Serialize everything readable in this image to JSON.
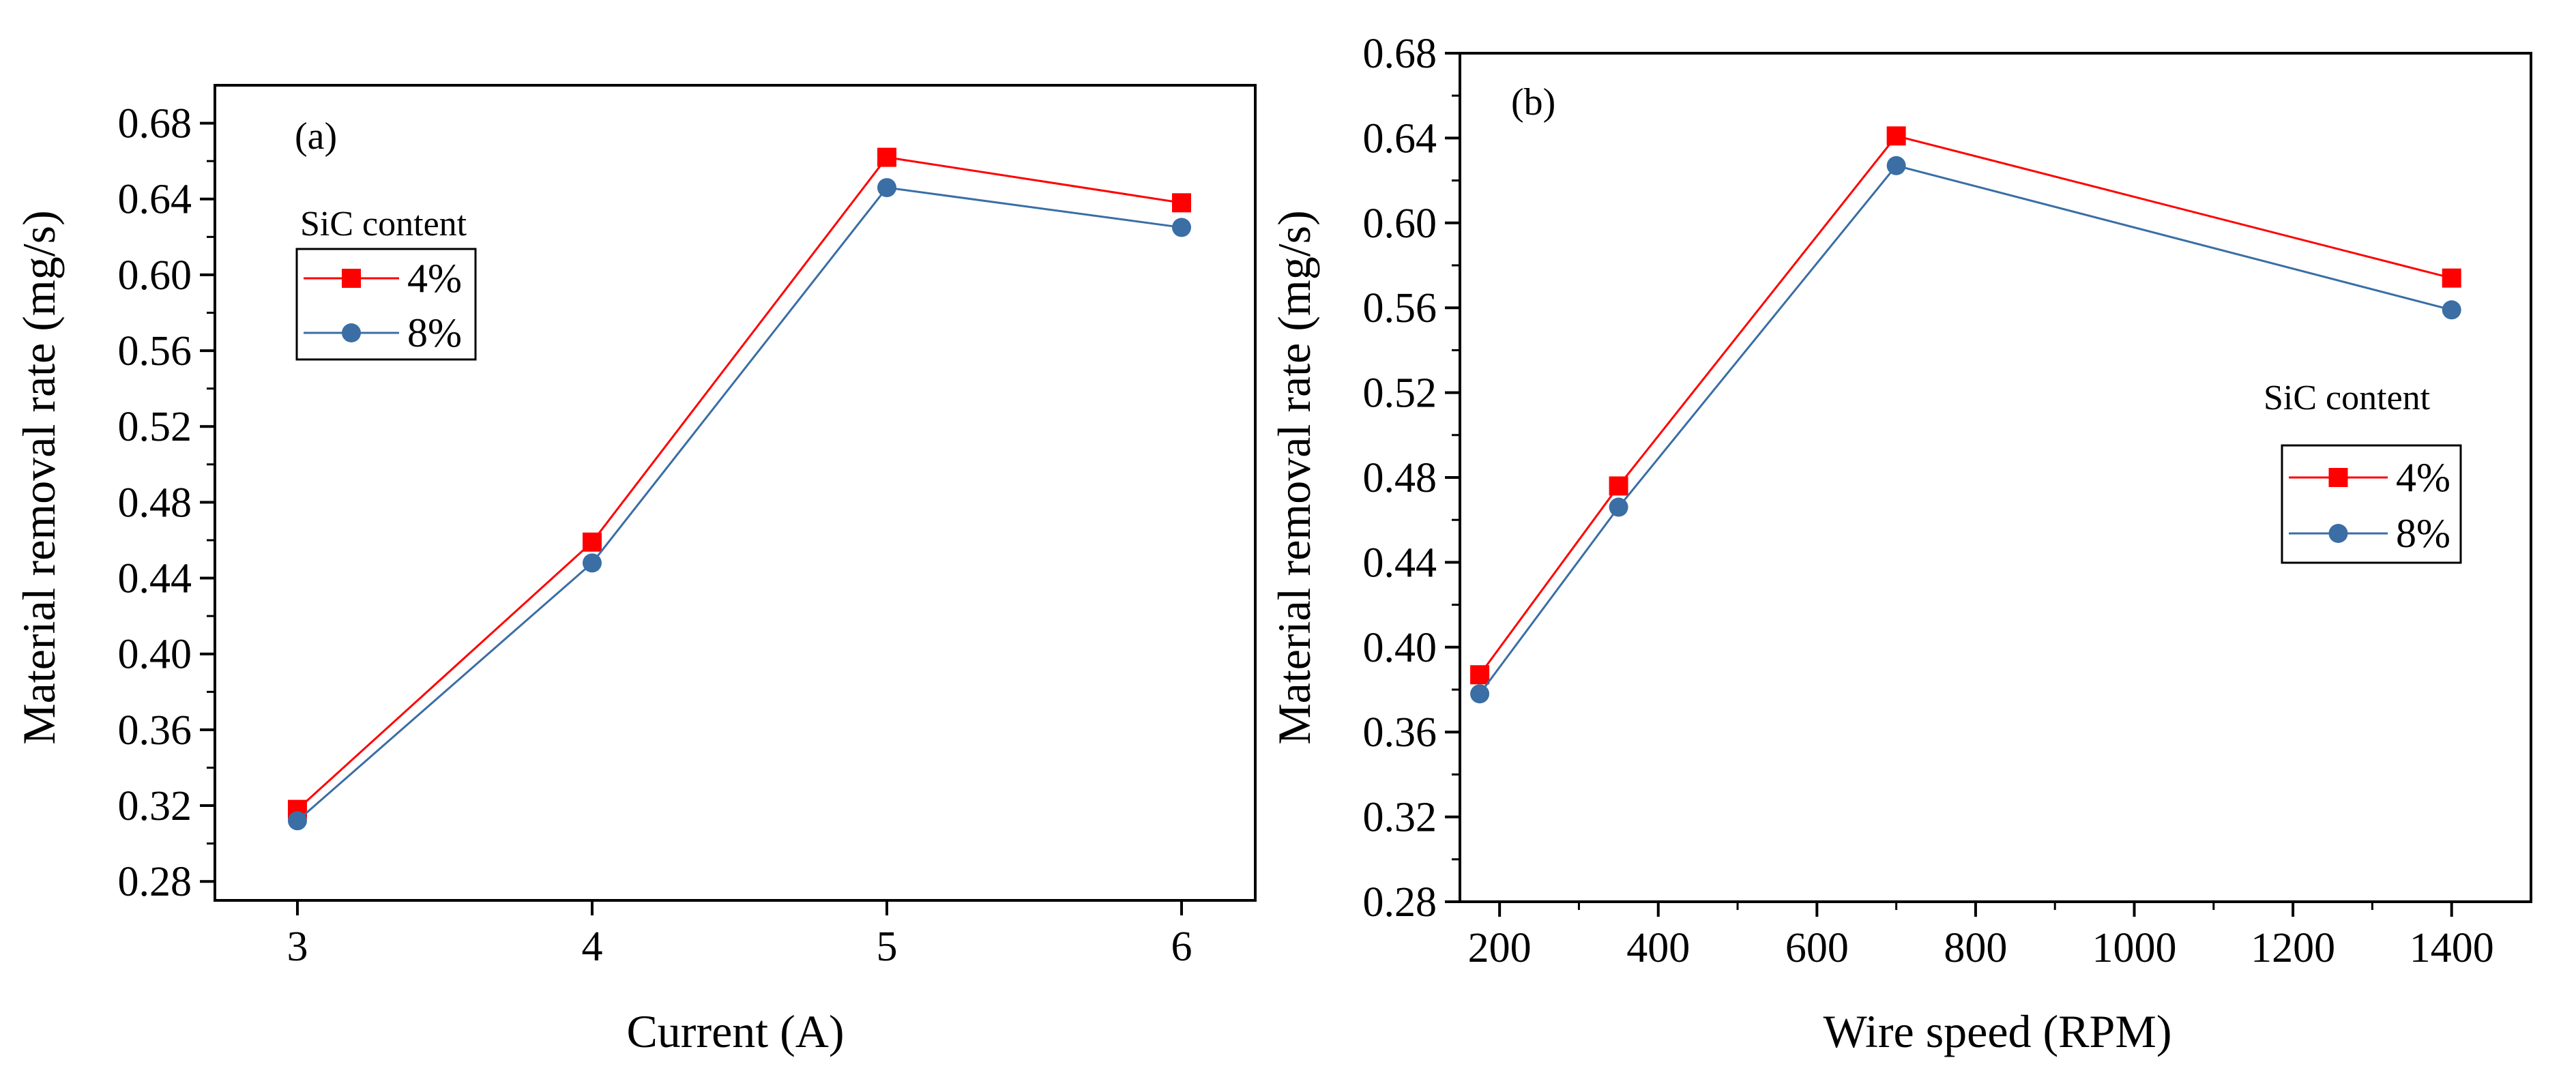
{
  "chart_data": [
    {
      "type": "line",
      "panel_label": "(a)",
      "xlabel": "Current (A)",
      "ylabel": "Material removal rate (mg/s)",
      "x": [
        3,
        4,
        5,
        6
      ],
      "x_ticks": [
        "3",
        "4",
        "5",
        "6"
      ],
      "xlim": [
        2.72,
        6.25
      ],
      "ylim": [
        0.27,
        0.7
      ],
      "y_ticks": [
        "0.28",
        "0.32",
        "0.36",
        "0.40",
        "0.44",
        "0.48",
        "0.52",
        "0.56",
        "0.60",
        "0.64",
        "0.68"
      ],
      "legend_title": "SiC content",
      "legend_position": "top-left",
      "series": [
        {
          "name": "4%",
          "color": "#ff0000",
          "marker": "square",
          "values": [
            0.318,
            0.459,
            0.662,
            0.638
          ]
        },
        {
          "name": "8%",
          "color": "#3a6ea5",
          "marker": "circle",
          "values": [
            0.312,
            0.448,
            0.646,
            0.625
          ]
        }
      ]
    },
    {
      "type": "line",
      "panel_label": "(b)",
      "xlabel": "Wire speed (RPM)",
      "ylabel": "Material removal rate (mg/s)",
      "x": [
        175,
        350,
        700,
        1400
      ],
      "x_ticks": [
        "200",
        "400",
        "600",
        "800",
        "1000",
        "1200",
        "1400"
      ],
      "x_tick_values": [
        200,
        400,
        600,
        800,
        1000,
        1200,
        1400
      ],
      "xlim": [
        150,
        1500
      ],
      "ylim": [
        0.28,
        0.68
      ],
      "y_ticks": [
        "0.28",
        "0.32",
        "0.36",
        "0.40",
        "0.44",
        "0.48",
        "0.52",
        "0.56",
        "0.60",
        "0.64",
        "0.68"
      ],
      "legend_title": "SiC content",
      "legend_position": "right",
      "series": [
        {
          "name": "4%",
          "color": "#ff0000",
          "marker": "square",
          "values": [
            0.387,
            0.476,
            0.641,
            0.574
          ]
        },
        {
          "name": "8%",
          "color": "#3a6ea5",
          "marker": "circle",
          "values": [
            0.378,
            0.466,
            0.627,
            0.559
          ]
        }
      ]
    }
  ]
}
